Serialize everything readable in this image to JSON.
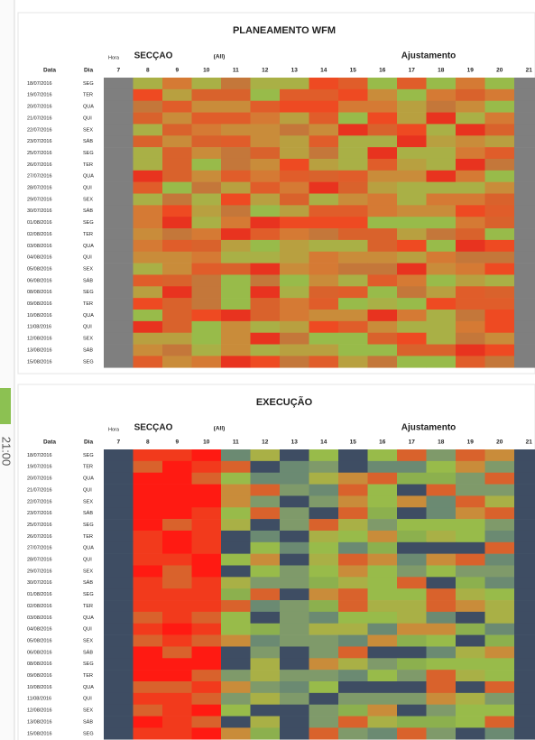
{
  "sidebar": {
    "time": "21:00"
  },
  "palette": {
    "plan": [
      "#e8331f",
      "#ee4a22",
      "#d9622c",
      "#d57a34",
      "#c98c3a",
      "#b8a040",
      "#a9b046",
      "#98bb4a",
      "#e05d2a",
      "#c4773a"
    ],
    "exec": [
      "#ff1a12",
      "#f23a1c",
      "#d9622c",
      "#c98c3a",
      "#a9b046",
      "#98bb4a",
      "#8cb04e",
      "#7f9a6a",
      "#6b8a72",
      "#3e4d63"
    ],
    "plan_edge": "#7f7f7f",
    "exec_edge": "#3e4d63"
  },
  "panels": [
    {
      "title": "PLANEAMENTO WFM",
      "hour_label": "Hora",
      "section_label": "SECÇAO",
      "filter": "(All)",
      "adjust_label": "Ajustamento",
      "date_header": "Data",
      "day_header": "Dia",
      "hours": [
        7,
        8,
        9,
        10,
        11,
        12,
        13,
        14,
        15,
        16,
        17,
        18,
        19,
        20,
        21
      ],
      "rows": [
        [
          "18/07/2016",
          "SEG"
        ],
        [
          "19/07/2016",
          "TER"
        ],
        [
          "20/07/2016",
          "QUA"
        ],
        [
          "21/07/2016",
          "QUI"
        ],
        [
          "22/07/2016",
          "SEX"
        ],
        [
          "23/07/2016",
          "SÁB"
        ],
        [
          "25/07/2016",
          "SEG"
        ],
        [
          "26/07/2016",
          "TER"
        ],
        [
          "27/07/2016",
          "QUA"
        ],
        [
          "28/07/2016",
          "QUI"
        ],
        [
          "29/07/2016",
          "SEX"
        ],
        [
          "30/07/2016",
          "SÁB"
        ],
        [
          "01/08/2016",
          "SEG"
        ],
        [
          "02/08/2016",
          "TER"
        ],
        [
          "03/08/2016",
          "QUA"
        ],
        [
          "04/08/2016",
          "QUI"
        ],
        [
          "05/08/2016",
          "SEX"
        ],
        [
          "06/08/2016",
          "SÁB"
        ],
        [
          "08/08/2016",
          "SEG"
        ],
        [
          "09/08/2016",
          "TER"
        ],
        [
          "10/08/2016",
          "QUA"
        ],
        [
          "11/08/2016",
          "QUI"
        ],
        [
          "12/08/2016",
          "SEX"
        ],
        [
          "13/08/2016",
          "SÁB"
        ],
        [
          "15/08/2016",
          "SEG"
        ]
      ]
    },
    {
      "title": "EXECUÇÃO",
      "hour_label": "Hora",
      "section_label": "SECÇAO",
      "filter": "(All)",
      "adjust_label": "Ajustamento",
      "date_header": "Data",
      "day_header": "Dia",
      "hours": [
        7,
        8,
        9,
        10,
        11,
        12,
        13,
        14,
        15,
        16,
        17,
        18,
        19,
        20,
        21
      ],
      "rows": [
        [
          "18/07/2016",
          "SEG"
        ],
        [
          "19/07/2016",
          "TER"
        ],
        [
          "20/07/2016",
          "QUA"
        ],
        [
          "21/07/2016",
          "QUI"
        ],
        [
          "22/07/2016",
          "SEX"
        ],
        [
          "23/07/2016",
          "SÁB"
        ],
        [
          "25/07/2016",
          "SEG"
        ],
        [
          "26/07/2016",
          "TER"
        ],
        [
          "27/07/2016",
          "QUA"
        ],
        [
          "28/07/2016",
          "QUI"
        ],
        [
          "29/07/2016",
          "SEX"
        ],
        [
          "30/07/2016",
          "SÁB"
        ],
        [
          "01/08/2016",
          "SEG"
        ],
        [
          "02/08/2016",
          "TER"
        ],
        [
          "03/08/2016",
          "QUA"
        ],
        [
          "04/08/2016",
          "QUI"
        ],
        [
          "05/08/2016",
          "SEX"
        ],
        [
          "06/08/2016",
          "SÁB"
        ],
        [
          "08/08/2016",
          "SEG"
        ],
        [
          "09/08/2016",
          "TER"
        ],
        [
          "10/08/2016",
          "QUA"
        ],
        [
          "11/08/2016",
          "QUI"
        ],
        [
          "12/08/2016",
          "SEX"
        ],
        [
          "13/08/2016",
          "SÁB"
        ],
        [
          "15/08/2016",
          "SEG"
        ]
      ]
    }
  ]
}
